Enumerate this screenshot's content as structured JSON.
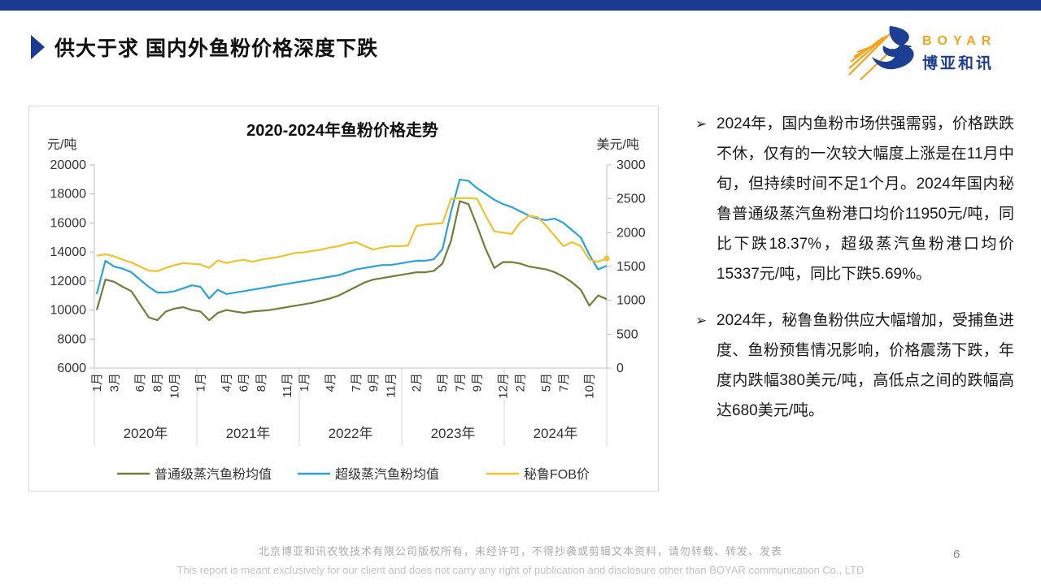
{
  "page": {
    "number": "6"
  },
  "header": {
    "title": "供大于求 国内外鱼粉价格深度下跌",
    "accent_color": "#1B3A94"
  },
  "logo": {
    "brand": "BOYAR",
    "brand_cn": "博亚和讯",
    "orange": "#F5A31C",
    "blue": "#1C3F94",
    "icon": "bird-swoosh"
  },
  "bullets": [
    {
      "marker": "➢",
      "text": "2024年，国内鱼粉市场供强需弱，价格跌跌不休，仅有的一次较大幅度上涨是在11月中旬，但持续时间不足1个月。2024年国内秘鲁普通级蒸汽鱼粉港口均价11950元/吨，同比下跌18.37%，超级蒸汽鱼粉港口均价15337元/吨，同比下跌5.69%。"
    },
    {
      "marker": "➢",
      "text": "2024年，秘鲁鱼粉供应大幅增加，受捕鱼进度、鱼粉预售情况影响，价格震荡下跌，年度内跌幅380美元/吨，高低点之间的跌幅高达680美元/吨。"
    }
  ],
  "footer": {
    "line1_cn": "北京博亚和讯农牧技术有限公司版权所有，未经许可，不得抄袭或剪辑文本资料，请勿转载、转发、发表",
    "line2_en": "This report is meant exclusively for our client and does not carry any right of publication and disclosure other than BOYAR communication Co., LTD"
  },
  "chart_data": {
    "type": "line",
    "title": "2020-2024年鱼粉价格走势",
    "left_axis": {
      "label": "元/吨",
      "min": 6000,
      "max": 20000,
      "ticks": [
        20000,
        18000,
        16000,
        14000,
        12000,
        10000,
        8000,
        6000
      ]
    },
    "right_axis": {
      "label": "美元/吨",
      "min": 0,
      "max": 3000,
      "ticks": [
        3000,
        2500,
        2000,
        1500,
        1000,
        500,
        0
      ]
    },
    "years": [
      "2020年",
      "2021年",
      "2022年",
      "2023年",
      "2024年"
    ],
    "month_ticks": [
      {
        "label": "1月",
        "index": 0
      },
      {
        "label": "3月",
        "index": 2
      },
      {
        "label": "6月",
        "index": 5
      },
      {
        "label": "8月",
        "index": 7
      },
      {
        "label": "10月",
        "index": 9
      },
      {
        "label": "1月",
        "index": 12
      },
      {
        "label": "4月",
        "index": 15
      },
      {
        "label": "6月",
        "index": 17
      },
      {
        "label": "8月",
        "index": 19
      },
      {
        "label": "11月",
        "index": 22
      },
      {
        "label": "1月",
        "index": 24
      },
      {
        "label": "4月",
        "index": 27
      },
      {
        "label": "7月",
        "index": 30
      },
      {
        "label": "9月",
        "index": 32
      },
      {
        "label": "11月",
        "index": 34
      },
      {
        "label": "2月",
        "index": 37
      },
      {
        "label": "5月",
        "index": 40
      },
      {
        "label": "7月",
        "index": 42
      },
      {
        "label": "9月",
        "index": 44
      },
      {
        "label": "12月",
        "index": 47
      },
      {
        "label": "2月",
        "index": 49
      },
      {
        "label": "5月",
        "index": 52
      },
      {
        "label": "7月",
        "index": 54
      },
      {
        "label": "10月",
        "index": 57
      }
    ],
    "series": [
      {
        "name": "普通级蒸汽鱼粉均值",
        "axis": "left",
        "color": "#717F3A",
        "values": [
          10000,
          12100,
          11950,
          11600,
          11300,
          10400,
          9500,
          9300,
          9900,
          10100,
          10200,
          10000,
          9900,
          9300,
          9800,
          10000,
          9900,
          9800,
          9900,
          9950,
          10000,
          10100,
          10200,
          10300,
          10400,
          10500,
          10650,
          10800,
          11000,
          11300,
          11600,
          11900,
          12100,
          12200,
          12300,
          12400,
          12500,
          12600,
          12600,
          12700,
          13200,
          14800,
          17500,
          17300,
          15800,
          14200,
          12900,
          13300,
          13300,
          13200,
          13000,
          12900,
          12800,
          12600,
          12300,
          11900,
          11400,
          10300,
          11000,
          10750
        ]
      },
      {
        "name": "超级蒸汽鱼粉均值",
        "axis": "left",
        "color": "#2AA3DC",
        "values": [
          11100,
          13400,
          13000,
          12850,
          12600,
          12100,
          11600,
          11200,
          11200,
          11300,
          11500,
          11700,
          11600,
          10800,
          11400,
          11100,
          11200,
          11300,
          11400,
          11500,
          11600,
          11700,
          11800,
          11900,
          12000,
          12100,
          12200,
          12300,
          12400,
          12600,
          12800,
          12900,
          13000,
          13100,
          13100,
          13200,
          13300,
          13400,
          13400,
          13500,
          14200,
          16800,
          19000,
          18900,
          18400,
          18000,
          17600,
          17300,
          17100,
          16800,
          16500,
          16300,
          16200,
          16300,
          16000,
          15500,
          15000,
          13800,
          12800,
          13050
        ]
      },
      {
        "name": "秘鲁FOB价",
        "axis": "right",
        "color": "#F2C12E",
        "values": [
          1660,
          1680,
          1650,
          1600,
          1560,
          1500,
          1440,
          1430,
          1480,
          1520,
          1550,
          1540,
          1530,
          1480,
          1590,
          1550,
          1580,
          1600,
          1570,
          1600,
          1620,
          1640,
          1670,
          1700,
          1710,
          1730,
          1750,
          1780,
          1800,
          1840,
          1860,
          1800,
          1750,
          1780,
          1800,
          1800,
          1810,
          2100,
          2120,
          2130,
          2140,
          2500,
          2510,
          2510,
          2500,
          2250,
          2020,
          2000,
          1980,
          2150,
          2250,
          2230,
          2100,
          1950,
          1800,
          1860,
          1800,
          1600,
          1570,
          1620
        ]
      }
    ],
    "legend_position": "bottom",
    "grid": false
  }
}
